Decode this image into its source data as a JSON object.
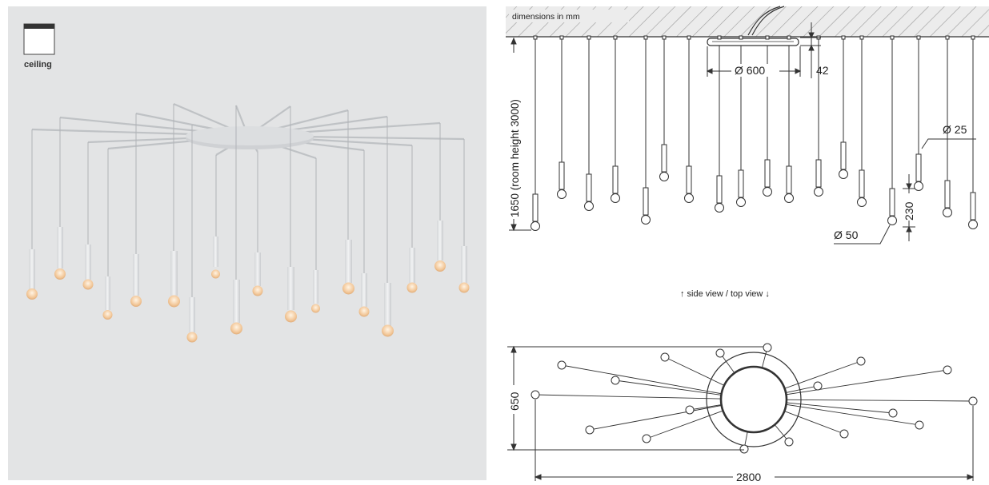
{
  "legend": {
    "icon": "ceiling-icon",
    "label": "ceiling"
  },
  "banner": "dimensions in mm",
  "side_view": {
    "canopy_diameter": "Ø 600",
    "canopy_height": "42",
    "drop_height": "1650 (room height 3000)",
    "tube_diameter": "Ø 25",
    "bulb_diameter": "Ø 50",
    "tube_length": "230"
  },
  "view_separator": "↑ side view / top view ↓",
  "top_view": {
    "depth": "650",
    "width": "2800"
  },
  "colors": {
    "render_background": "#e3e4e5",
    "canopy": "#cfd1d4",
    "pendant_glow": "#f3c89a",
    "line": "#333333"
  },
  "pendant_count": 18
}
